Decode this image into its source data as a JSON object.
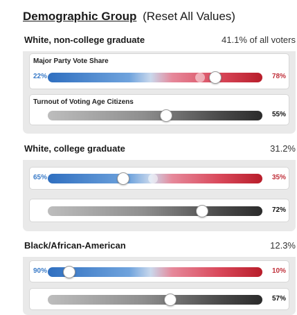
{
  "header": {
    "title": "Demographic Group",
    "reset": "(Reset All Values)"
  },
  "labels": {
    "party": "Major Party Vote Share",
    "turnout": "Turnout of Voting Age Citizens"
  },
  "groups": [
    {
      "name": "White, non-college graduate",
      "share": "41.1% of all voters",
      "party": {
        "left": "22%",
        "right": "78%",
        "dem_fraction": 0.22
      },
      "turnout": {
        "value": "55%",
        "fraction": 0.55
      }
    },
    {
      "name": "White, college graduate",
      "share": "31.2%",
      "party": {
        "left": "65%",
        "right": "35%",
        "dem_fraction": 0.65
      },
      "turnout": {
        "value": "72%",
        "fraction": 0.72
      }
    },
    {
      "name": "Black/African-American",
      "share": "12.3%",
      "party": {
        "left": "90%",
        "right": "10%",
        "dem_fraction": 0.9
      },
      "turnout": {
        "value": "57%",
        "fraction": 0.57
      }
    }
  ],
  "colors": {
    "democrat": "#3a7bc8",
    "republican": "#c0303a"
  }
}
